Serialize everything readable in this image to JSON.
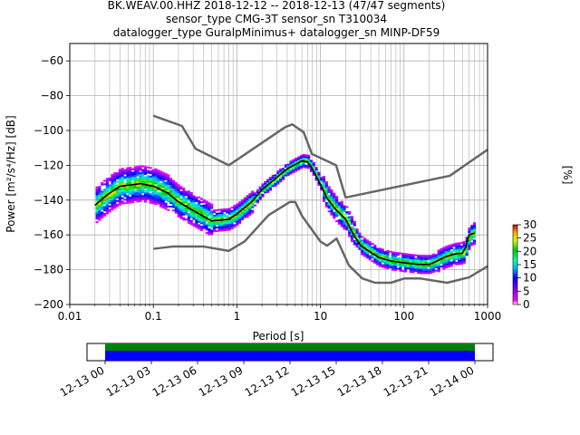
{
  "chart_data": {
    "type": "heatmap",
    "title_lines": [
      "BK.WEAV.00.HHZ   2018-12-12 -- 2018-12-13  (47/47 segments)",
      "sensor_type CMG-3T sensor_sn T310034",
      "datalogger_type GuralpMinimus+ datalogger_sn MINP-DF59"
    ],
    "xlabel": "Period [s]",
    "ylabel": "Power [m²/s⁴/Hz] [dB]",
    "xscale": "log",
    "xlim": [
      0.01,
      1000
    ],
    "ylim": [
      -200,
      -50
    ],
    "grid": true,
    "x_tick_labels": [
      "0.01",
      "0.1",
      "1",
      "10",
      "100",
      "1000"
    ],
    "y_ticks": [
      -60,
      -80,
      -100,
      -120,
      -140,
      -160,
      -180,
      -200
    ],
    "y_tick_labels": [
      "−60",
      "−80",
      "−100",
      "−120",
      "−140",
      "−160",
      "−180",
      "−200"
    ],
    "colorbar": {
      "label": "[%]",
      "range": [
        0,
        30
      ],
      "tick_labels": [
        "0",
        "5",
        "10",
        "15",
        "20",
        "25",
        "30"
      ]
    },
    "noise_models": [
      {
        "name": "high",
        "points": [
          [
            0.1,
            -91.5
          ],
          [
            0.22,
            -97.4
          ],
          [
            0.32,
            -110.5
          ],
          [
            0.8,
            -120
          ],
          [
            3.8,
            -98
          ],
          [
            4.6,
            -96.5
          ],
          [
            6.3,
            -101
          ],
          [
            7.9,
            -113.5
          ],
          [
            15.4,
            -120
          ],
          [
            20,
            -138.5
          ],
          [
            354,
            -126
          ],
          [
            1000,
            -111
          ]
        ]
      },
      {
        "name": "low",
        "points": [
          [
            0.1,
            -168
          ],
          [
            0.17,
            -166.7
          ],
          [
            0.4,
            -166.7
          ],
          [
            0.8,
            -169.2
          ],
          [
            1.24,
            -163.7
          ],
          [
            2.4,
            -148.6
          ],
          [
            4.3,
            -141.1
          ],
          [
            5,
            -141.1
          ],
          [
            6,
            -149
          ],
          [
            10,
            -163.8
          ],
          [
            12,
            -166.2
          ],
          [
            15.6,
            -162.1
          ],
          [
            21.9,
            -177.5
          ],
          [
            31.6,
            -185
          ],
          [
            45,
            -187.5
          ],
          [
            70,
            -187.5
          ],
          [
            101,
            -185
          ],
          [
            154,
            -185
          ],
          [
            328,
            -187.5
          ],
          [
            600,
            -184.4
          ],
          [
            1000,
            -178
          ]
        ]
      }
    ],
    "mean_curve": [
      [
        0.02,
        -143
      ],
      [
        0.025,
        -139
      ],
      [
        0.03,
        -136
      ],
      [
        0.04,
        -132
      ],
      [
        0.05,
        -131.5
      ],
      [
        0.07,
        -130.5
      ],
      [
        0.1,
        -132
      ],
      [
        0.15,
        -136
      ],
      [
        0.2,
        -141
      ],
      [
        0.3,
        -146
      ],
      [
        0.5,
        -152
      ],
      [
        0.8,
        -151
      ],
      [
        1,
        -148
      ],
      [
        1.5,
        -141
      ],
      [
        2,
        -134
      ],
      [
        3,
        -127
      ],
      [
        4,
        -122
      ],
      [
        5,
        -119.5
      ],
      [
        6,
        -117.5
      ],
      [
        7,
        -118
      ],
      [
        8,
        -122
      ],
      [
        10,
        -131
      ],
      [
        12,
        -139
      ],
      [
        15,
        -145
      ],
      [
        20,
        -151
      ],
      [
        25,
        -160
      ],
      [
        30,
        -166
      ],
      [
        40,
        -170
      ],
      [
        50,
        -173
      ],
      [
        70,
        -175
      ],
      [
        100,
        -176
      ],
      [
        150,
        -177
      ],
      [
        200,
        -177
      ],
      [
        250,
        -175
      ],
      [
        300,
        -173
      ],
      [
        400,
        -171
      ],
      [
        500,
        -170.5
      ],
      [
        550,
        -167
      ],
      [
        600,
        -160
      ],
      [
        700,
        -159
      ]
    ]
  },
  "timeline": {
    "tick_labels": [
      "12-13 00",
      "12-13 03",
      "12-13 06",
      "12-13 09",
      "12-13 12",
      "12-13 15",
      "12-13 18",
      "12-13 21",
      "12-14 00"
    ],
    "colors": [
      "#008000",
      "#0000ff"
    ]
  }
}
